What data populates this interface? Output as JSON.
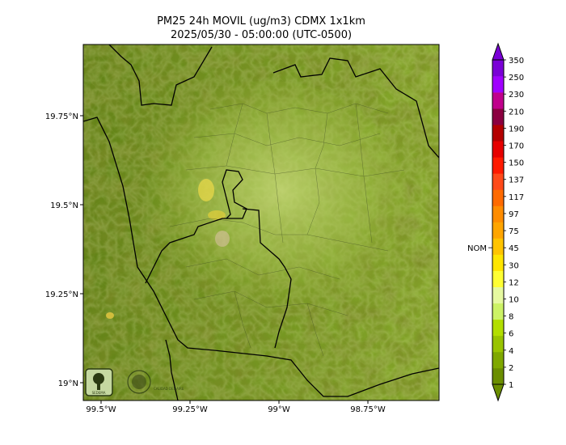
{
  "title": {
    "line1": "PM25 24h MOVIL (ug/m3) CDMX 1x1km",
    "line2": "2025/05/30 - 05:00:00 (UTC-0500)"
  },
  "axes": {
    "lat_ticks": [
      "19.75°N",
      "19.5°N",
      "19.25°N",
      "19°N"
    ],
    "lon_ticks": [
      "99.5°W",
      "99.25°W",
      "99°W",
      "98.75°W"
    ],
    "lat_values": [
      19.75,
      19.5,
      19.25,
      19.0
    ],
    "lon_values": [
      -99.5,
      -99.25,
      -99.0,
      -98.75
    ],
    "lon_range": [
      -99.55,
      -98.55
    ],
    "lat_range": [
      18.95,
      19.95
    ]
  },
  "colorbar": {
    "labels": [
      "1",
      "2",
      "4",
      "6",
      "8",
      "10",
      "12",
      "30",
      "45",
      "75",
      "97",
      "117",
      "137",
      "150",
      "170",
      "190",
      "210",
      "230",
      "250",
      "350"
    ],
    "colors": [
      "#6b8e00",
      "#7fa800",
      "#99c400",
      "#b2de00",
      "#ccf266",
      "#e6f9a0",
      "#ffff33",
      "#ffe600",
      "#ffc400",
      "#ffa500",
      "#ff8c00",
      "#ff6a00",
      "#ff4a1a",
      "#ff1a00",
      "#e60000",
      "#b40000",
      "#8b0040",
      "#c0008c",
      "#a000ff",
      "#7a00d6"
    ],
    "nom_label": "NOM",
    "nom_value": "45"
  },
  "logos": [
    {
      "name": "SEDEMA"
    },
    {
      "name": "Calidad del Aire"
    }
  ]
}
